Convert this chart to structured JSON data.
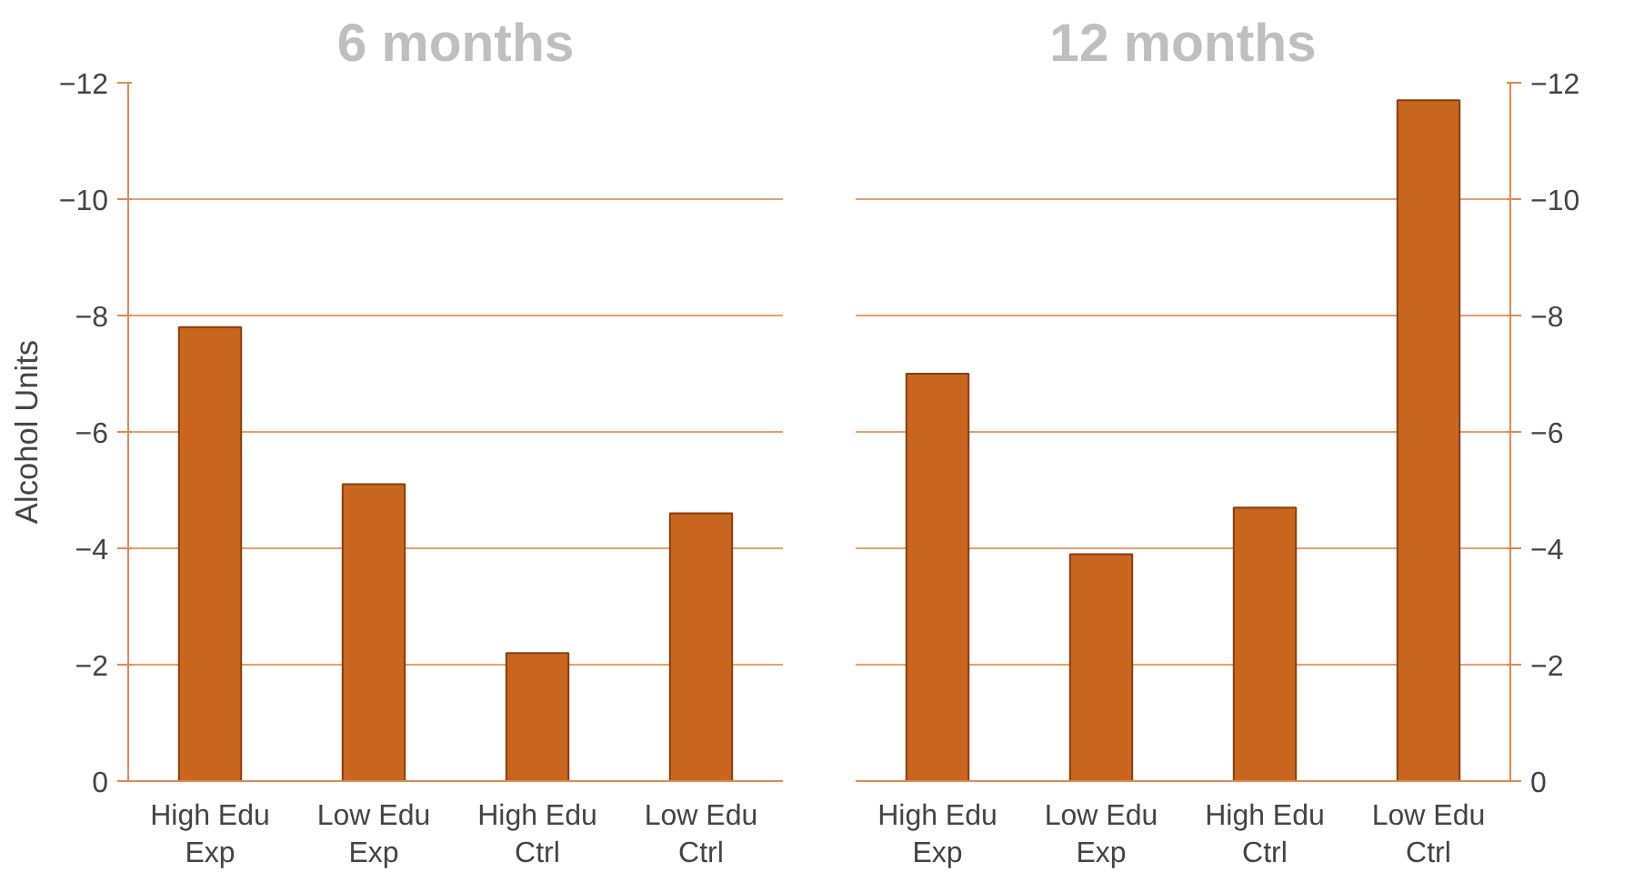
{
  "chart_data": [
    {
      "type": "bar",
      "title": "6 months",
      "ylabel": "Alcohol Units",
      "categories": [
        "High Edu\nExp",
        "Low Edu\nExp",
        "High Edu\nCtrl",
        "Low Edu\nCtrl"
      ],
      "series": [
        {
          "color": "#c8651e",
          "values": [
            -7.8,
            -5.1,
            -2.2,
            -4.6
          ]
        }
      ],
      "ylim": [
        0,
        -12
      ],
      "yticks": [
        0,
        -2,
        -4,
        -6,
        -8,
        -10,
        -12
      ],
      "grid": "y"
    },
    {
      "type": "bar",
      "title": "12 months",
      "categories": [
        "High Edu\nExp",
        "Low Edu\nExp",
        "High Edu\nCtrl",
        "Low Edu\nCtrl"
      ],
      "series": [
        {
          "color": "#c8651e",
          "values": [
            -7.0,
            -3.9,
            -4.7,
            -11.7
          ],
          "axis": "y2"
        }
      ],
      "y2lim": [
        0,
        -12
      ],
      "y2ticks": [
        0,
        -2,
        -4,
        -6,
        -8,
        -10,
        -12
      ],
      "grid": "y"
    }
  ]
}
